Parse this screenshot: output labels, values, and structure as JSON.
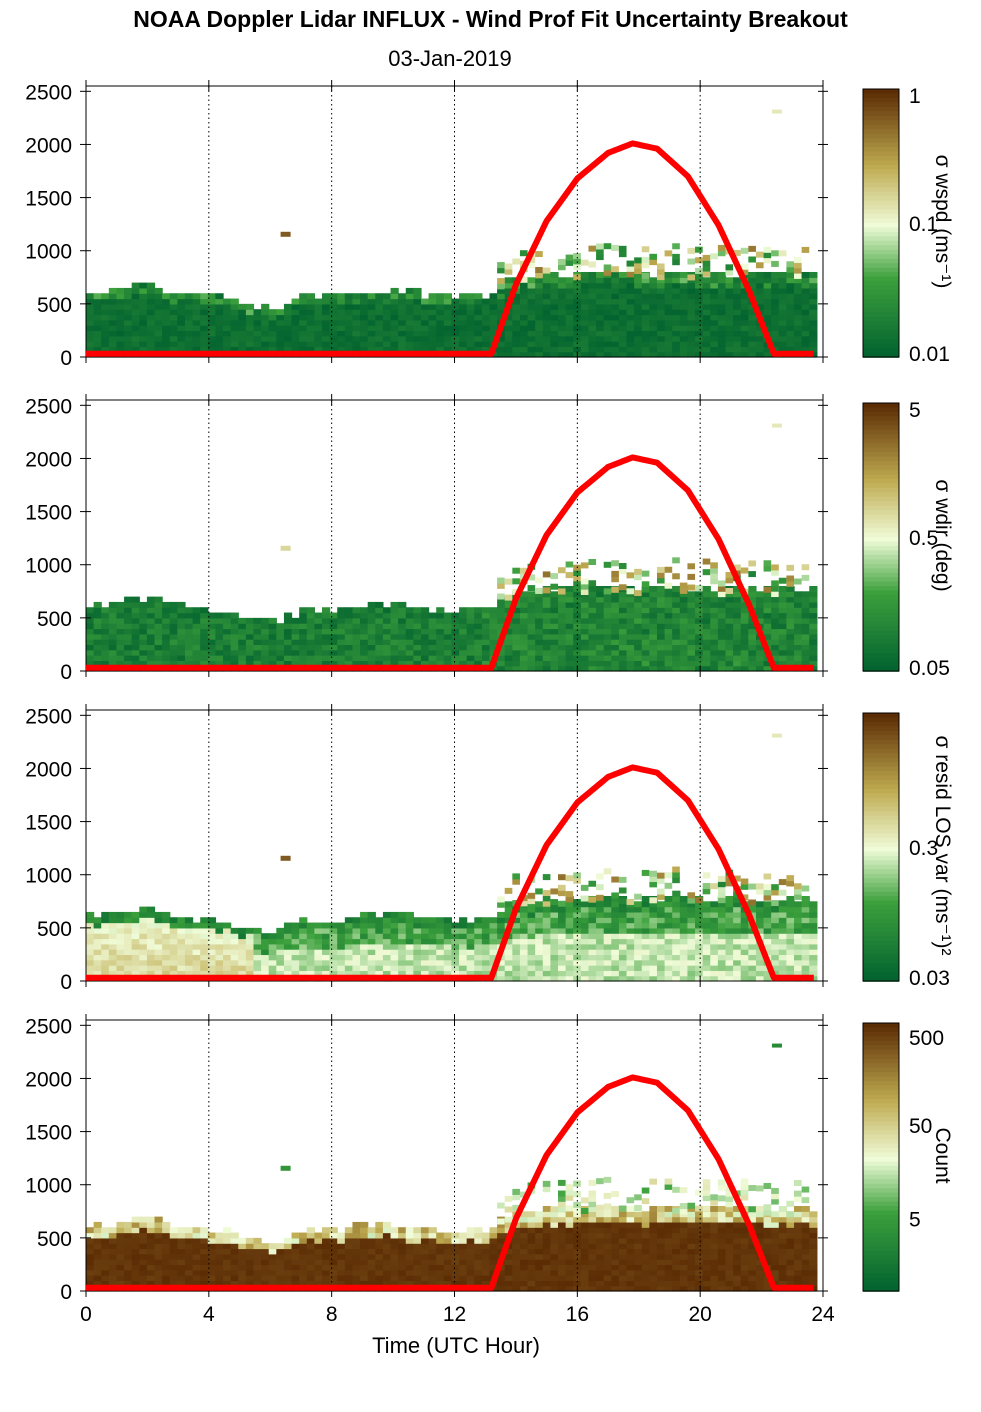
{
  "title": "NOAA Doppler Lidar INFLUX - Wind Prof Fit Uncertainty Breakout",
  "subtitle": "03-Jan-2019",
  "chart_data": {
    "type": "heatmap",
    "xlabel": "Time (UTC Hour)",
    "xlim": [
      0,
      24
    ],
    "x_ticks": [
      0,
      4,
      8,
      12,
      16,
      20,
      24
    ],
    "ylim": [
      0,
      2550
    ],
    "y_ticks": [
      0,
      500,
      1000,
      1500,
      2000,
      2500
    ],
    "colors": {
      "low": "#00602f",
      "mid": "#f0fcd8",
      "high": "#5c2c04",
      "curve": "#ff0000"
    },
    "panels": [
      {
        "colorbar_label": "σ wspd (ms⁻¹)",
        "colorbar_ticks": [
          "1",
          "0.1",
          "0.01"
        ],
        "colorbar_tick_pos": [
          1.0,
          0.5,
          0.0
        ],
        "field": "low"
      },
      {
        "colorbar_label": "σ wdir (deg)",
        "colorbar_ticks": [
          "5",
          "0.5",
          "0.05"
        ],
        "colorbar_tick_pos": [
          1.0,
          0.5,
          0.0
        ],
        "field": "wdir"
      },
      {
        "colorbar_label": "σ resid LOS var (ms⁻¹)²",
        "colorbar_ticks": [
          "0.3",
          "0.03"
        ],
        "colorbar_tick_pos": [
          0.5,
          0.0
        ],
        "field": "resid"
      },
      {
        "colorbar_label": "Count",
        "colorbar_ticks": [
          "500",
          "50",
          "5"
        ],
        "colorbar_tick_pos": [
          0.97,
          0.62,
          0.27
        ],
        "field": "count"
      }
    ],
    "cloud_top_height": [
      {
        "x": 0.0,
        "y": 580
      },
      {
        "x": 1.0,
        "y": 620
      },
      {
        "x": 2.0,
        "y": 680
      },
      {
        "x": 3.0,
        "y": 580
      },
      {
        "x": 4.0,
        "y": 560
      },
      {
        "x": 5.0,
        "y": 500
      },
      {
        "x": 6.0,
        "y": 420
      },
      {
        "x": 7.0,
        "y": 540
      },
      {
        "x": 8.0,
        "y": 560
      },
      {
        "x": 9.0,
        "y": 580
      },
      {
        "x": 10.0,
        "y": 600
      },
      {
        "x": 11.0,
        "y": 570
      },
      {
        "x": 12.0,
        "y": 540
      },
      {
        "x": 13.0,
        "y": 560
      },
      {
        "x": 14.0,
        "y": 720
      },
      {
        "x": 15.0,
        "y": 740
      },
      {
        "x": 16.0,
        "y": 760
      },
      {
        "x": 17.0,
        "y": 780
      },
      {
        "x": 18.0,
        "y": 760
      },
      {
        "x": 19.0,
        "y": 780
      },
      {
        "x": 20.0,
        "y": 760
      },
      {
        "x": 21.0,
        "y": 750
      },
      {
        "x": 22.0,
        "y": 760
      },
      {
        "x": 23.0,
        "y": 750
      },
      {
        "x": 23.8,
        "y": 740
      }
    ],
    "solar_curve": [
      {
        "x": 0.0,
        "y": 30
      },
      {
        "x": 13.2,
        "y": 30
      },
      {
        "x": 14.0,
        "y": 680
      },
      {
        "x": 15.0,
        "y": 1280
      },
      {
        "x": 16.0,
        "y": 1680
      },
      {
        "x": 17.0,
        "y": 1920
      },
      {
        "x": 17.8,
        "y": 2010
      },
      {
        "x": 18.6,
        "y": 1960
      },
      {
        "x": 19.6,
        "y": 1700
      },
      {
        "x": 20.6,
        "y": 1240
      },
      {
        "x": 21.6,
        "y": 620
      },
      {
        "x": 22.4,
        "y": 30
      },
      {
        "x": 23.8,
        "y": 30
      }
    ]
  }
}
